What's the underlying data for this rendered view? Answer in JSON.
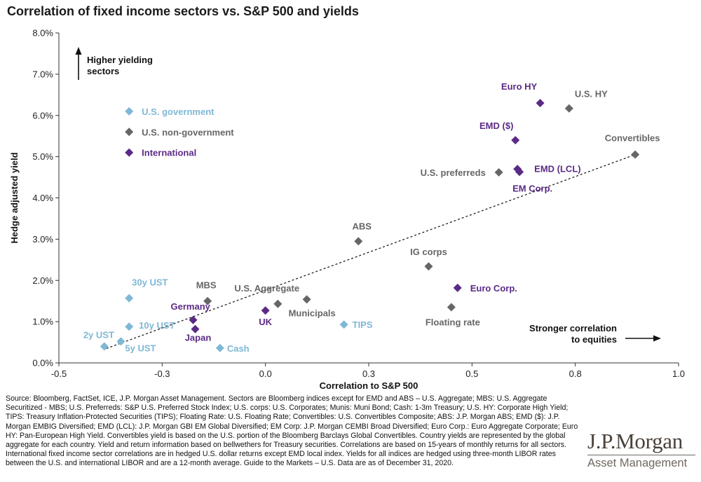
{
  "page": {
    "title": "Correlation of fixed income sectors vs. S&P 500 and yields",
    "source": "Source: Bloomberg, FactSet, ICE, J.P. Morgan Asset Management. Sectors are Bloomberg indices except for EMD and ABS – U.S. Aggregate; MBS: U.S. Aggregate Securitized - MBS; U.S. Preferreds: S&P U.S. Preferred Stock Index; U.S. corps: U.S. Corporates; Munis: Muni Bond; Cash: 1-3m Treasury; U.S. HY: Corporate High Yield; TIPS: Treasury Inflation-Protected Securities (TIPS); Floating Rate: U.S. Floating Rate; Convertibles: U.S. Convertibles Composite; ABS: J.P. Morgan ABS; EMD ($): J.P. Morgan EMBIG Diversified; EMD (LCL): J.P. Morgan GBI EM Global Diversified; EM Corp: J.P. Morgan CEMBI Broad Diversified; Euro Corp.: Euro Aggregate Corporate; Euro HY: Pan-European High Yield. Convertibles yield is based on the U.S. portion of the Bloomberg Barclays Global Convertibles. Country yields are represented by the global aggregate for each country. Yield and return information based on bellwethers for Treasury securities. Correlations are based on 15-years of monthly returns for all sectors. International fixed income sector correlations are in hedged U.S. dollar returns except EMD local index. Yields for all indices are hedged using three-month LIBOR rates between the U.S. and international LIBOR and are a 12-month average. Guide to the Markets – U.S. Data are as of December 31, 2020.",
    "logo_name": "J.P.Morgan",
    "logo_sub": "Asset Management"
  },
  "chart_data": {
    "type": "scatter",
    "title": "Correlation of fixed income sectors vs. S&P 500 and yields",
    "xlabel": "Correlation to S&P 500",
    "ylabel": "Hedge adjusted yield",
    "xlim": [
      -0.5,
      1.0
    ],
    "ylim": [
      0.0,
      8.0
    ],
    "xticks": [
      -0.5,
      -0.25,
      0.0,
      0.25,
      0.5,
      0.75,
      1.0
    ],
    "xtick_labels": [
      "-0.5",
      "-0.3",
      "0.0",
      "0.3",
      "0.5",
      "0.8",
      "1.0"
    ],
    "yticks": [
      0,
      1,
      2,
      3,
      4,
      5,
      6,
      7,
      8
    ],
    "ytick_labels": [
      "0.0%",
      "1.0%",
      "2.0%",
      "3.0%",
      "4.0%",
      "5.0%",
      "6.0%",
      "7.0%",
      "8.0%"
    ],
    "grid": false,
    "legend_position": "top-left",
    "series": [
      {
        "name": "U.S. government",
        "color": "#7fb8d6",
        "points": [
          {
            "label": "2y UST",
            "x": -0.39,
            "y": 0.4
          },
          {
            "label": "5y UST",
            "x": -0.35,
            "y": 0.52
          },
          {
            "label": "10y UST",
            "x": -0.33,
            "y": 0.88
          },
          {
            "label": "30y UST",
            "x": -0.33,
            "y": 1.57
          },
          {
            "label": "Cash",
            "x": -0.11,
            "y": 0.36
          },
          {
            "label": "TIPS",
            "x": 0.19,
            "y": 0.93
          }
        ]
      },
      {
        "name": "U.S. non-government",
        "color": "#666666",
        "points": [
          {
            "label": "MBS",
            "x": -0.14,
            "y": 1.5
          },
          {
            "label": "U.S. Aggregate",
            "x": 0.03,
            "y": 1.43
          },
          {
            "label": "Municipals",
            "x": 0.1,
            "y": 1.54
          },
          {
            "label": "ABS",
            "x": 0.225,
            "y": 2.95
          },
          {
            "label": "IG corps",
            "x": 0.395,
            "y": 2.34
          },
          {
            "label": "Floating rate",
            "x": 0.45,
            "y": 1.35
          },
          {
            "label": "U.S. preferreds",
            "x": 0.565,
            "y": 4.62
          },
          {
            "label": "U.S. HY",
            "x": 0.735,
            "y": 6.17
          },
          {
            "label": "Convertibles",
            "x": 0.895,
            "y": 5.05
          }
        ]
      },
      {
        "name": "International",
        "color": "#5b2a86",
        "points": [
          {
            "label": "Germany",
            "x": -0.175,
            "y": 1.04
          },
          {
            "label": "Japan",
            "x": -0.17,
            "y": 0.82
          },
          {
            "label": "UK",
            "x": 0.0,
            "y": 1.27
          },
          {
            "label": "Euro Corp.",
            "x": 0.465,
            "y": 1.82
          },
          {
            "label": "EMD ($)",
            "x": 0.605,
            "y": 5.4
          },
          {
            "label": "EMD (LCL)",
            "x": 0.61,
            "y": 4.7
          },
          {
            "label": "EM Corp.",
            "x": 0.615,
            "y": 4.63
          },
          {
            "label": "Euro HY",
            "x": 0.665,
            "y": 6.3
          }
        ]
      }
    ],
    "trendline": {
      "style": "dashed",
      "from": {
        "x": -0.385,
        "y": 0.35
      },
      "to": {
        "x": 0.895,
        "y": 5.05
      }
    },
    "annotations": [
      {
        "text": "Higher yielding sectors",
        "lines": [
          "Higher yielding",
          "sectors"
        ],
        "arrow": "up"
      },
      {
        "text": "Stronger correlation to equities",
        "lines": [
          "Stronger correlation",
          "to equities"
        ],
        "arrow": "right"
      }
    ]
  }
}
